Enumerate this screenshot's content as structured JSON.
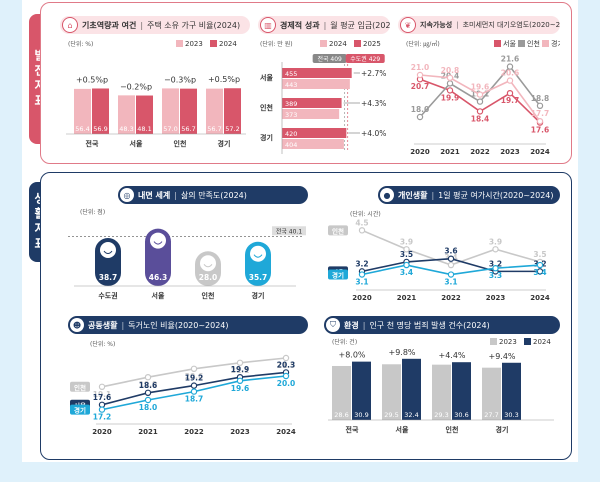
{
  "section_labels": {
    "development": "발전지표",
    "life": "생활지표"
  },
  "panels": {
    "household": {
      "topic": "기초역량과 여건",
      "title": "주택 소유 가구 비율(2024)"
    },
    "wage": {
      "topic": "경제적 성과",
      "title": "월 평균 임금(2025)"
    },
    "pollution": {
      "topic": "지속가능성",
      "title": "초미세먼지 대기오염도(2020~2024)"
    },
    "satisfaction": {
      "topic": "내면 세계",
      "title": "삶의 만족도(2024)"
    },
    "leisure": {
      "topic": "개인생활",
      "title": "1일 평균 여가시간(2020~2024)"
    },
    "elderly": {
      "topic": "공동생활",
      "title": "독거노인 비율(2020~2024)"
    },
    "crime": {
      "topic": "환경",
      "title": "인구 천 명당 범죄 발생 건수(2024)"
    }
  },
  "icons": {
    "household": "house-icon",
    "wage": "chart-icon",
    "pollution": "leaf-icon",
    "satisfaction": "target-icon",
    "leisure": "person-icon",
    "elderly": "people-icon",
    "crime": "shield-icon"
  },
  "colors": {
    "pink_dark": "#d8566a",
    "pink_light": "#f2b6bd",
    "navy": "#1f3b66",
    "purple": "#5a4e9a",
    "gray": "#9a9a9a",
    "sky": "#1fa8d8",
    "light_gray": "#c8c8c8"
  },
  "chart_data": [
    {
      "id": "household",
      "type": "bar",
      "unit": "(단위: %)",
      "categories": [
        "전국",
        "서울",
        "인천",
        "경기"
      ],
      "series": [
        {
          "name": "2023",
          "values": [
            56.4,
            48.3,
            57.0,
            56.7
          ]
        },
        {
          "name": "2024",
          "values": [
            56.9,
            48.1,
            56.7,
            57.2
          ]
        }
      ],
      "changes": [
        "+0.5%p",
        "−0.2%p",
        "−0.3%p",
        "+0.5%p"
      ],
      "ylim": [
        0,
        70
      ]
    },
    {
      "id": "wage",
      "type": "bar",
      "orientation": "horizontal",
      "unit": "(단위: 만 원)",
      "categories": [
        "서울",
        "인천",
        "경기"
      ],
      "series": [
        {
          "name": "2024",
          "values": [
            443,
            373,
            404
          ]
        },
        {
          "name": "2025",
          "values": [
            455,
            389,
            420
          ]
        }
      ],
      "changes": [
        "+2.7%",
        "+4.3%",
        "+4.0%"
      ],
      "reference_lines": [
        {
          "label": "전국 409",
          "value": 409
        },
        {
          "label": "수도권 429",
          "value": 429
        }
      ],
      "xlim": [
        0,
        470
      ]
    },
    {
      "id": "pollution",
      "type": "line",
      "unit": "(단위: ㎍/㎥)",
      "x": [
        "2020",
        "2021",
        "2022",
        "2023",
        "2024"
      ],
      "series": [
        {
          "name": "서울",
          "values": [
            20.7,
            19.9,
            18.4,
            19.7,
            17.6
          ]
        },
        {
          "name": "인천",
          "values": [
            18.0,
            20.4,
            19.1,
            21.6,
            18.8
          ]
        },
        {
          "name": "경기",
          "values": [
            21.0,
            20.8,
            19.6,
            20.6,
            17.7
          ]
        }
      ],
      "ylim": [
        16.5,
        22.5
      ]
    },
    {
      "id": "satisfaction",
      "type": "bar",
      "unit": "(단위: 점)",
      "categories": [
        "수도권",
        "서울",
        "인천",
        "경기"
      ],
      "values": [
        38.7,
        46.3,
        28.0,
        35.7
      ],
      "reference_lines": [
        {
          "label": "전국 40.1",
          "value": 40.1
        }
      ],
      "ylim": [
        0,
        50
      ]
    },
    {
      "id": "leisure",
      "type": "line",
      "unit": "(단위: 시간)",
      "x": [
        "2020",
        "2021",
        "2022",
        "2023",
        "2024"
      ],
      "series": [
        {
          "name": "인천",
          "values": [
            4.5,
            3.9,
            3.4,
            3.9,
            3.5
          ]
        },
        {
          "name": "서울",
          "values": [
            3.2,
            3.5,
            3.6,
            3.2,
            3.2
          ]
        },
        {
          "name": "경기",
          "values": [
            3.1,
            3.4,
            3.1,
            3.3,
            3.4
          ]
        }
      ],
      "ylim": [
        2.8,
        4.7
      ]
    },
    {
      "id": "elderly",
      "type": "line",
      "unit": "(단위: %)",
      "x": [
        "2020",
        "2021",
        "2022",
        "2023",
        "2024"
      ],
      "series": [
        {
          "name": "인천",
          "values": [
            19.1,
            19.9,
            20.6,
            21.1,
            21.5
          ]
        },
        {
          "name": "서울",
          "values": [
            17.6,
            18.6,
            19.2,
            19.9,
            20.3
          ]
        },
        {
          "name": "경기",
          "values": [
            17.2,
            18.0,
            18.7,
            19.6,
            20.0
          ]
        }
      ],
      "ylim": [
        16.5,
        22.0
      ]
    },
    {
      "id": "crime",
      "type": "bar",
      "unit": "(단위: 건)",
      "categories": [
        "전국",
        "서울",
        "인천",
        "경기"
      ],
      "series": [
        {
          "name": "2023",
          "values": [
            28.6,
            29.5,
            29.3,
            27.7
          ]
        },
        {
          "name": "2024",
          "values": [
            30.9,
            32.4,
            30.6,
            30.3
          ]
        }
      ],
      "changes": [
        "+8.0%",
        "+9.8%",
        "+4.4%",
        "+9.4%"
      ],
      "ylim": [
        0,
        36
      ]
    }
  ]
}
